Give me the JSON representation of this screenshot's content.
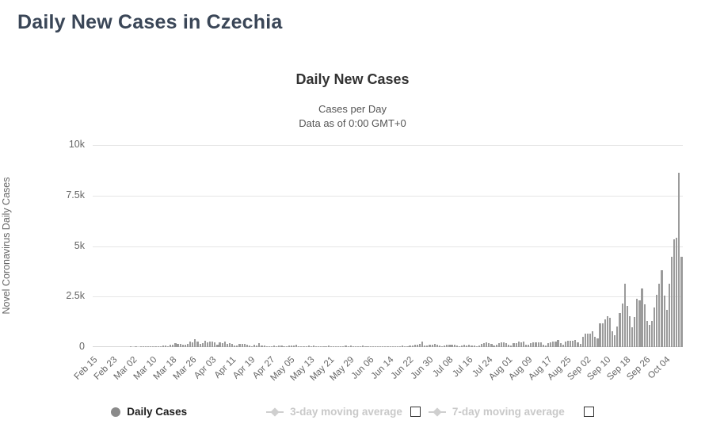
{
  "page": {
    "title": "Daily New Cases in Czechia"
  },
  "chart": {
    "title": "Daily New Cases",
    "subtitle_line1": "Cases per Day",
    "subtitle_line2": "Data as of 0:00 GMT+0",
    "y_axis_title": "Novel Coronavirus Daily Cases"
  },
  "legend": {
    "daily_cases_label": "Daily Cases",
    "ma3_label": "3-day moving average",
    "ma7_label": "7-day moving average",
    "daily_marker_color": "#8a8a8a",
    "ma_marker_color": "#cfcfcf"
  },
  "chart_data": {
    "type": "bar",
    "title": "Daily New Cases",
    "subtitle": [
      "Cases per Day",
      "Data as of 0:00 GMT+0"
    ],
    "xlabel": "",
    "ylabel": "Novel Coronavirus Daily Cases",
    "ylim": [
      0,
      10000
    ],
    "grid": true,
    "legend_position": "bottom",
    "bar_color": "#9b9b9b",
    "y_ticks": [
      {
        "label": "0",
        "value": 0
      },
      {
        "label": "2.5k",
        "value": 2500
      },
      {
        "label": "5k",
        "value": 5000
      },
      {
        "label": "7.5k",
        "value": 7500
      },
      {
        "label": "10k",
        "value": 10000
      }
    ],
    "x_unit": "day",
    "start_date": "Feb 15",
    "end_date": "Oct 10",
    "x_tick_labels": [
      "Feb 15",
      "Feb 23",
      "Mar 02",
      "Mar 10",
      "Mar 18",
      "Mar 26",
      "Apr 03",
      "Apr 11",
      "Apr 19",
      "Apr 27",
      "May 05",
      "May 13",
      "May 21",
      "May 29",
      "Jun 06",
      "Jun 14",
      "Jun 22",
      "Jun 30",
      "Jul 08",
      "Jul 16",
      "Jul 24",
      "Aug 01",
      "Aug 09",
      "Aug 17",
      "Aug 25",
      "Sep 02",
      "Sep 10",
      "Sep 18",
      "Sep 26",
      "Oct 04"
    ],
    "x_tick_day_indices": [
      0,
      8,
      16,
      24,
      32,
      40,
      48,
      56,
      64,
      72,
      80,
      88,
      96,
      104,
      112,
      120,
      128,
      136,
      144,
      152,
      160,
      168,
      176,
      184,
      192,
      200,
      208,
      216,
      224,
      232
    ],
    "series": [
      {
        "name": "Daily Cases",
        "values": [
          0,
          0,
          0,
          0,
          0,
          0,
          0,
          0,
          0,
          0,
          0,
          0,
          0,
          0,
          0,
          3,
          0,
          2,
          0,
          3,
          11,
          7,
          5,
          7,
          25,
          30,
          22,
          25,
          73,
          90,
          46,
          106,
          112,
          181,
          139,
          158,
          118,
          121,
          158,
          259,
          244,
          373,
          263,
          160,
          184,
          306,
          218,
          282,
          260,
          235,
          115,
          248,
          195,
          292,
          162,
          192,
          163,
          87,
          68,
          163,
          148,
          162,
          111,
          60,
          55,
          130,
          92,
          186,
          93,
          77,
          52,
          36,
          56,
          96,
          48,
          67,
          77,
          28,
          36,
          71,
          69,
          89,
          111,
          54,
          36,
          27,
          54,
          63,
          58,
          77,
          58,
          35,
          22,
          52,
          58,
          87,
          58,
          49,
          29,
          24,
          46,
          57,
          71,
          56,
          60,
          24,
          16,
          52,
          44,
          65,
          49,
          43,
          19,
          18,
          39,
          45,
          48,
          32,
          37,
          24,
          11,
          35,
          39,
          57,
          51,
          60,
          37,
          20,
          68,
          77,
          106,
          121,
          148,
          260,
          67,
          78,
          118,
          106,
          139,
          121,
          75,
          47,
          60,
          120,
          104,
          134,
          116,
          73,
          55,
          62,
          112,
          68,
          101,
          95,
          78,
          47,
          66,
          156,
          180,
          247,
          208,
          144,
          92,
          130,
          196,
          222,
          225,
          188,
          119,
          83,
          180,
          213,
          273,
          228,
          281,
          133,
          105,
          196,
          218,
          246,
          249,
          233,
          121,
          77,
          183,
          232,
          269,
          284,
          334,
          194,
          118,
          274,
          326,
          332,
          318,
          361,
          226,
          148,
          502,
          650,
          681,
          679,
          798,
          503,
          418,
          1164,
          1165,
          1382,
          1512,
          1447,
          795,
          590,
          1038,
          1675,
          2139,
          3130,
          2046,
          1541,
          985,
          1476,
          2394,
          2309,
          2912,
          2111,
          1305,
          1080,
          1287,
          1965,
          2583,
          3130,
          3793,
          2545,
          1844,
          3118,
          4457,
          5335,
          5394,
          8618,
          4469
        ]
      }
    ],
    "disabled_series": [
      "3-day moving average",
      "7-day moving average"
    ]
  }
}
